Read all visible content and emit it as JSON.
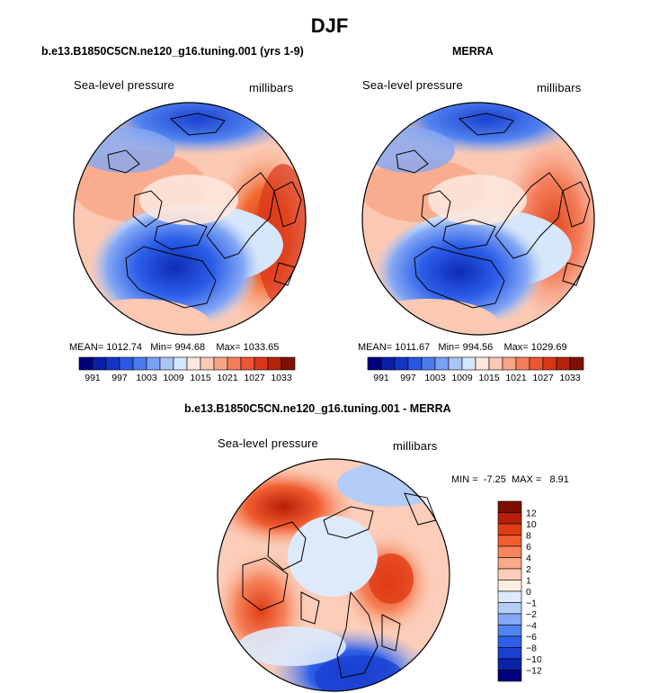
{
  "season": "DJF",
  "panels": [
    {
      "title": "b.e13.B1850C5CN.ne120_g16.tuning.001 (yrs 1-9)",
      "variable": "Sea-level pressure",
      "units": "millibars",
      "stats": {
        "mean_label": "MEAN=",
        "mean": "1012.74",
        "min_label": "Min=",
        "min": "994.68",
        "max_label": "Max=",
        "max": "1033.65"
      }
    },
    {
      "title": "MERRA",
      "variable": "Sea-level pressure",
      "units": "millibars",
      "stats": {
        "mean_label": "MEAN=",
        "mean": "1011.67",
        "min_label": "Min=",
        "min": "994.56",
        "max_label": "Max=",
        "max": "1029.69"
      }
    }
  ],
  "abs_colorbar": {
    "colors": [
      "#00007f",
      "#0a1fa6",
      "#1434c8",
      "#2a58e6",
      "#4a7cf0",
      "#78a0f4",
      "#a9c4f6",
      "#d6e6fb",
      "#fde6dc",
      "#fbc8b4",
      "#f7a586",
      "#f47e5c",
      "#ee5532",
      "#d93618",
      "#b4220c",
      "#801000"
    ],
    "labels": [
      "991",
      "997",
      "1003",
      "1009",
      "1015",
      "1021",
      "1027",
      "1033"
    ]
  },
  "diff_panel": {
    "title": "b.e13.B1850C5CN.ne120_g16.tuning.001 - MERRA",
    "variable": "Sea-level pressure",
    "units": "millibars",
    "min_label": "MIN =",
    "min": "-7.25",
    "max_label": "MAX =",
    "max": "8.91"
  },
  "diff_colorbar": {
    "colors": [
      "#000080",
      "#0a22a8",
      "#1a3fd0",
      "#2d5ee8",
      "#5284f0",
      "#84a8f4",
      "#b4cdf7",
      "#ddeafc",
      "#feeee4",
      "#fccdb9",
      "#f9aa8a",
      "#f6845c",
      "#f15c30",
      "#e03c14",
      "#b81e08",
      "#7f0d00"
    ],
    "labels": [
      "12",
      "10",
      "8",
      "6",
      "4",
      "2",
      "1",
      "0",
      "−1",
      "−2",
      "−4",
      "−6",
      "−8",
      "−10",
      "−12"
    ]
  }
}
